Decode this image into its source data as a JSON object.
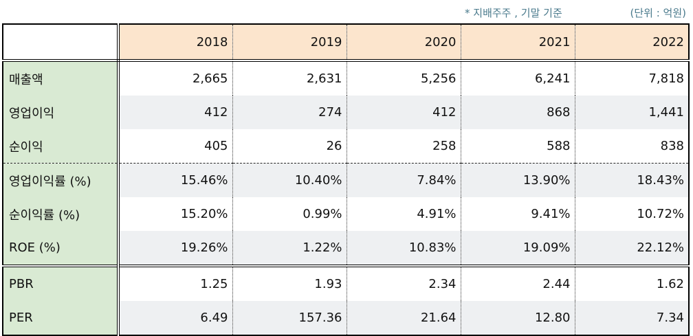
{
  "notes": {
    "basis": "* 지배주주 , 기말 기준",
    "unit": "(단위 : 억원)"
  },
  "header": {
    "years": [
      "2018",
      "2019",
      "2020",
      "2021",
      "2022"
    ]
  },
  "rows": [
    {
      "label": "매출액",
      "values": [
        "2,665",
        "2,631",
        "5,256",
        "6,241",
        "7,818"
      ]
    },
    {
      "label": "영업이익",
      "values": [
        "412",
        "274",
        "412",
        "868",
        "1,441"
      ]
    },
    {
      "label": "순이익",
      "values": [
        "405",
        "26",
        "258",
        "588",
        "838"
      ]
    },
    {
      "label": "영업이익률 (%)",
      "values": [
        "15.46%",
        "10.40%",
        "7.84%",
        "13.90%",
        "18.43%"
      ]
    },
    {
      "label": "순이익률 (%)",
      "values": [
        "15.20%",
        "0.99%",
        "4.91%",
        "9.41%",
        "10.72%"
      ]
    },
    {
      "label": "ROE (%)",
      "values": [
        "19.26%",
        "1.22%",
        "10.83%",
        "19.09%",
        "22.12%"
      ]
    },
    {
      "label": "PBR",
      "values": [
        "1.25",
        "1.93",
        "2.34",
        "2.44",
        "1.62"
      ]
    },
    {
      "label": "PER",
      "values": [
        "6.49",
        "157.36",
        "21.64",
        "12.80",
        "7.34"
      ]
    }
  ]
}
